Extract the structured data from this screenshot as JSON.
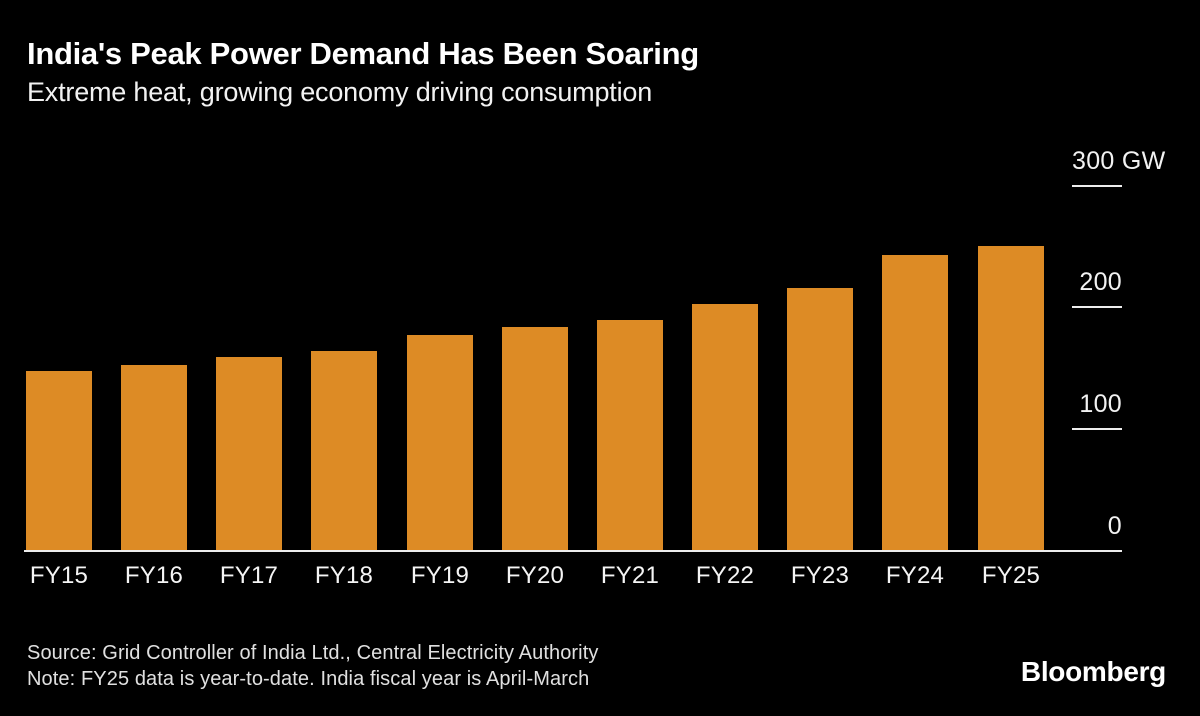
{
  "header": {
    "title": "India's Peak Power Demand Has Been Soaring",
    "subtitle": "Extreme heat, growing economy driving consumption"
  },
  "chart_data": {
    "type": "bar",
    "categories": [
      "FY15",
      "FY16",
      "FY17",
      "FY18",
      "FY19",
      "FY20",
      "FY21",
      "FY22",
      "FY23",
      "FY24",
      "FY25"
    ],
    "values": [
      148,
      153,
      159,
      164,
      177,
      184,
      190,
      203,
      216,
      243,
      250
    ],
    "title": "India's Peak Power Demand Has Been Soaring",
    "subtitle": "Extreme heat, growing economy driving consumption",
    "xlabel": "",
    "ylabel": "GW",
    "unit": "GW",
    "ylim": [
      0,
      300
    ],
    "yticks": [
      0,
      100,
      200,
      300
    ],
    "ytick_labels": [
      "0",
      "100",
      "200",
      "300 GW"
    ],
    "grid": false,
    "legend": false,
    "bar_color": "#DD8B25",
    "axis_side": "right"
  },
  "footer": {
    "source": "Source: Grid Controller of India Ltd., Central Electricity Authority",
    "note": "Note: FY25 data is year-to-date. India fiscal year is April-March",
    "brand": "Bloomberg"
  },
  "colors": {
    "background": "#000000",
    "bar": "#DD8B25",
    "title_text": "#FFFFFF",
    "subtitle_text": "#F2F2F2",
    "axis_text": "#F2F2F2",
    "axis_line": "#EDEDED",
    "footer_text": "#E0E0E0"
  }
}
